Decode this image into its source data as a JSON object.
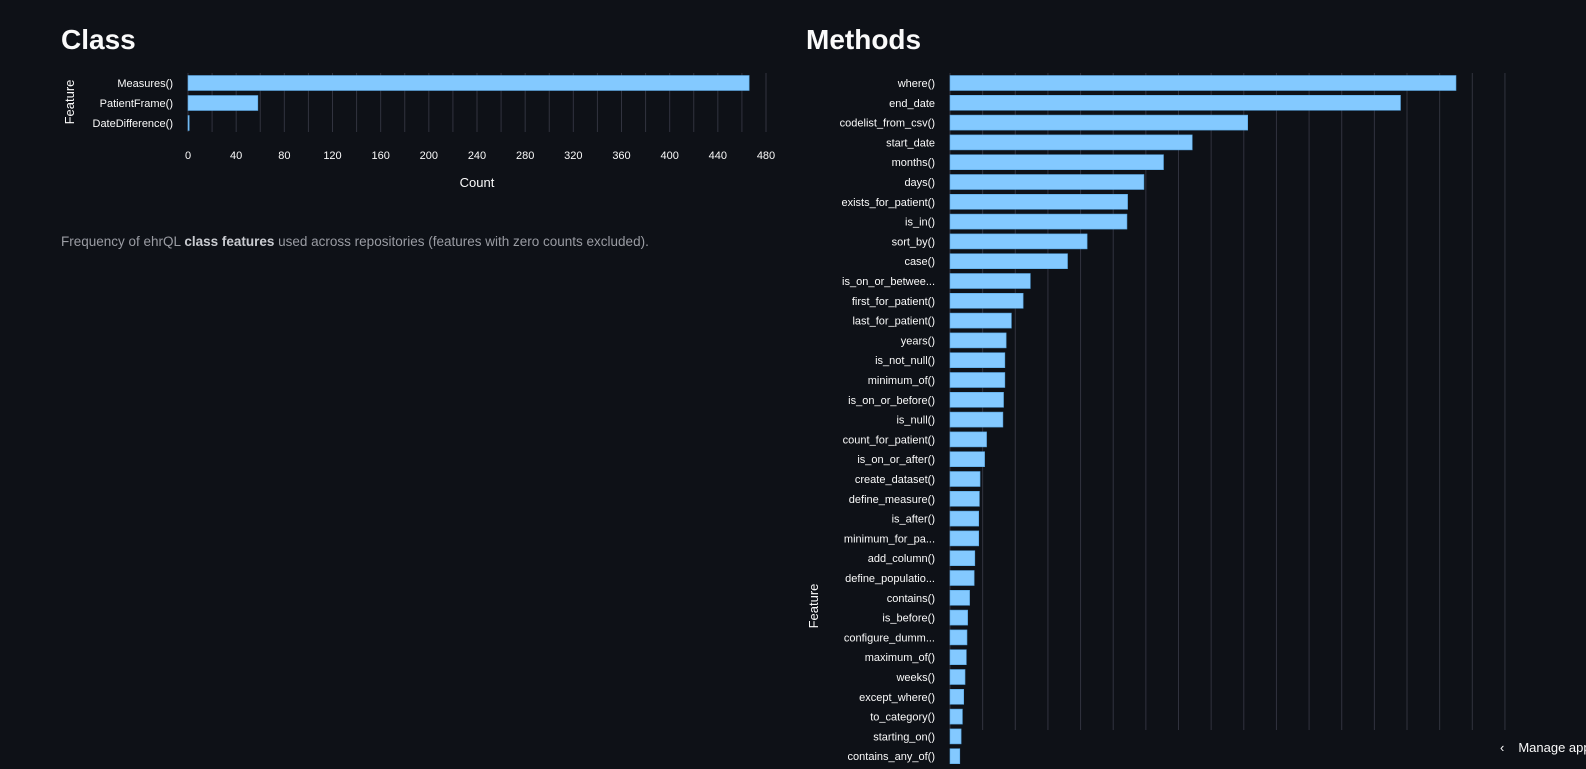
{
  "page": {
    "class_title": "Class",
    "methods_title": "Methods",
    "caption_pre": "Frequency of ehrQL ",
    "caption_bold": "class features",
    "caption_post": " used across repositories (features with zero counts excluded).",
    "manage_label": "Manage app"
  },
  "colors": {
    "bar": "#83c9ff",
    "bar_stroke": "#5aa6e0",
    "grid": "#31333f",
    "background": "#0e1117"
  },
  "chart_data": [
    {
      "type": "bar",
      "orientation": "horizontal",
      "xlabel": "Count",
      "ylabel": "Feature",
      "xlim": [
        0,
        480
      ],
      "xticks": [
        0,
        40,
        80,
        120,
        160,
        200,
        240,
        280,
        320,
        360,
        400,
        440,
        480
      ],
      "categories": [
        "Measures()",
        "PatientFrame()",
        "DateDifference()"
      ],
      "values": [
        466,
        58,
        1
      ],
      "grid": true
    },
    {
      "type": "bar",
      "orientation": "horizontal",
      "xlabel": "",
      "ylabel": "Feature",
      "xlim": [
        0,
        870
      ],
      "grid": true,
      "categories": [
        "where()",
        "end_date",
        "codelist_from_csv()",
        "start_date",
        "months()",
        "days()",
        "exists_for_patient()",
        "is_in()",
        "sort_by()",
        "case()",
        "is_on_or_betwee...",
        "first_for_patient()",
        "last_for_patient()",
        "years()",
        "is_not_null()",
        "minimum_of()",
        "is_on_or_before()",
        "is_null()",
        "count_for_patient()",
        "is_on_or_after()",
        "create_dataset()",
        "define_measure()",
        "is_after()",
        "minimum_for_pa...",
        "add_column()",
        "define_populatio...",
        "contains()",
        "is_before()",
        "configure_dumm...",
        "maximum_of()",
        "weeks()",
        "except_where()",
        "to_category()",
        "starting_on()",
        "contains_any_of()"
      ],
      "values": [
        775,
        690,
        456,
        371,
        327,
        297,
        272,
        271,
        210,
        180,
        123,
        112,
        94,
        86,
        84,
        84,
        82,
        81,
        56,
        53,
        46,
        45,
        44,
        44,
        38,
        37,
        30,
        27,
        26,
        25,
        23,
        21,
        19,
        17,
        15
      ]
    }
  ]
}
